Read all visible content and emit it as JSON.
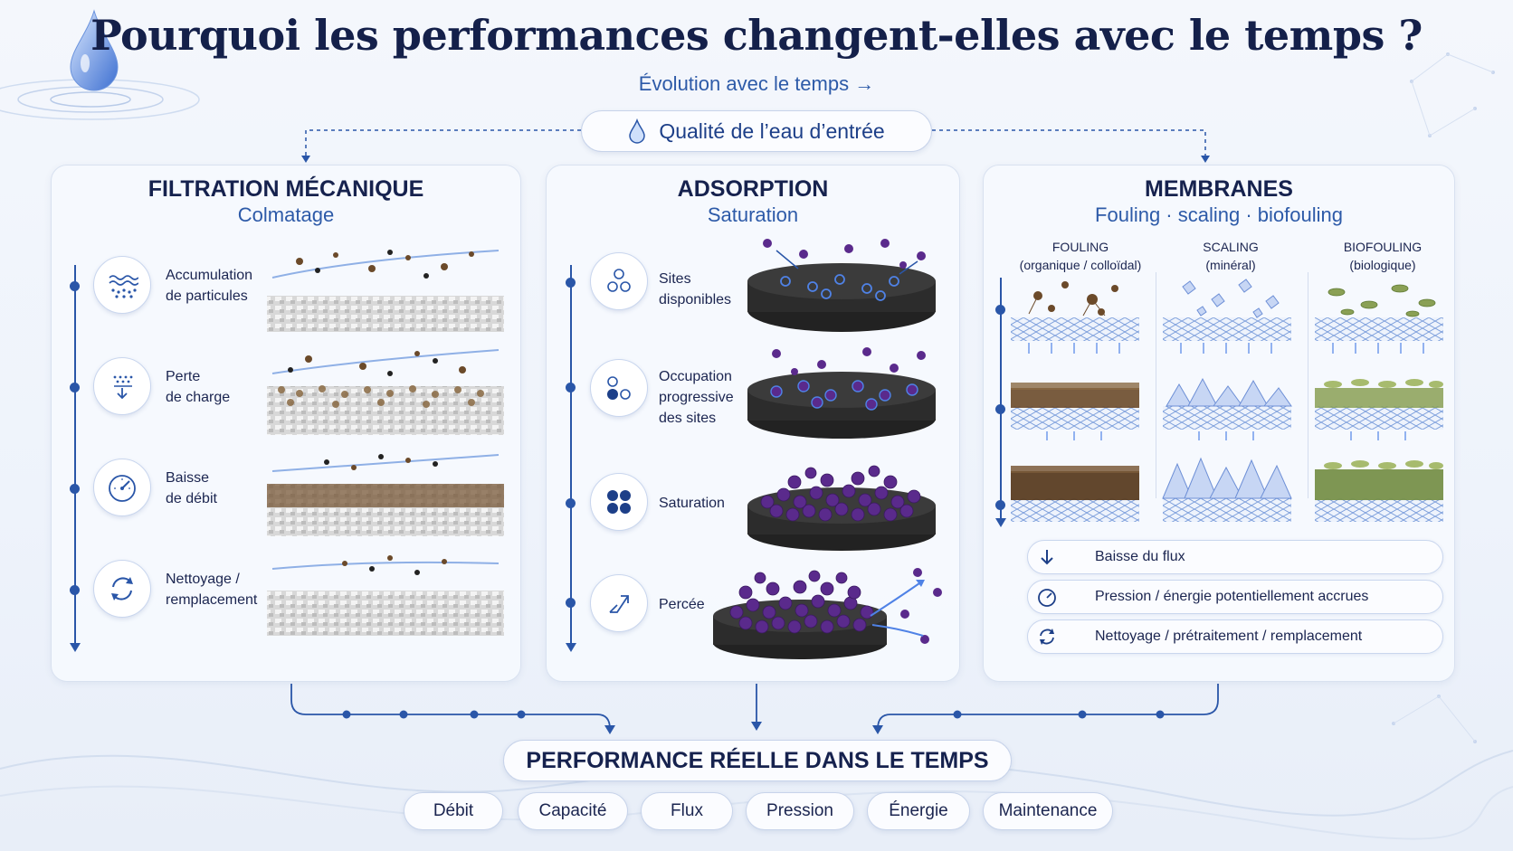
{
  "title": "Pourquoi les performances changent-elles avec le temps ?",
  "subtitle": "Évolution avec le temps →",
  "input_label": "Qualité de l’eau d’entrée",
  "panels": {
    "mechanical": {
      "title": "FILTRATION MÉCANIQUE",
      "subtitle": "Colmatage",
      "steps": [
        {
          "line1": "Accumulation",
          "line2": "de particules",
          "icon": "waves-particles-icon"
        },
        {
          "line1": "Perte",
          "line2": "de charge",
          "icon": "pressure-drop-icon"
        },
        {
          "line1": "Baisse",
          "line2": "de débit",
          "icon": "gauge-icon"
        },
        {
          "line1": "Nettoyage /",
          "line2": "remplacement",
          "icon": "cycle-icon"
        }
      ]
    },
    "adsorption": {
      "title": "ADSORPTION",
      "subtitle": "Saturation",
      "steps": [
        {
          "lines": [
            "Sites",
            "disponibles"
          ],
          "icon": "empty-sites-icon"
        },
        {
          "lines": [
            "Occupation",
            "progressive",
            "des sites"
          ],
          "icon": "partial-sites-icon"
        },
        {
          "lines": [
            "Saturation"
          ],
          "icon": "full-sites-icon"
        },
        {
          "lines": [
            "Percée"
          ],
          "icon": "breakthrough-icon"
        }
      ]
    },
    "membranes": {
      "title": "MEMBRANES",
      "subtitle": "Fouling · scaling · biofouling",
      "columns": [
        {
          "name": "FOULING",
          "detail": "(organique / colloïdal)"
        },
        {
          "name": "SCALING",
          "detail": "(minéral)"
        },
        {
          "name": "BIOFOULING",
          "detail": "(biologique)"
        }
      ],
      "effects": [
        {
          "label": "Baisse du flux",
          "icon": "arrow-down-icon"
        },
        {
          "label": "Pression / énergie potentiellement accrues",
          "icon": "gauge-icon"
        },
        {
          "label": "Nettoyage / prétraitement / remplacement",
          "icon": "cycle-icon"
        }
      ]
    }
  },
  "outcome": {
    "title": "PERFORMANCE RÉELLE DANS LE TEMPS",
    "metrics": [
      "Débit",
      "Capacité",
      "Flux",
      "Pression",
      "Énergie",
      "Maintenance"
    ]
  },
  "colors": {
    "accent": "#2a56a8",
    "title": "#14204a",
    "adsorbate": "#5a2a8c",
    "fouling": "#7a5a3a",
    "scaling": "#9fb6e8",
    "biofouling": "#8aa055"
  }
}
